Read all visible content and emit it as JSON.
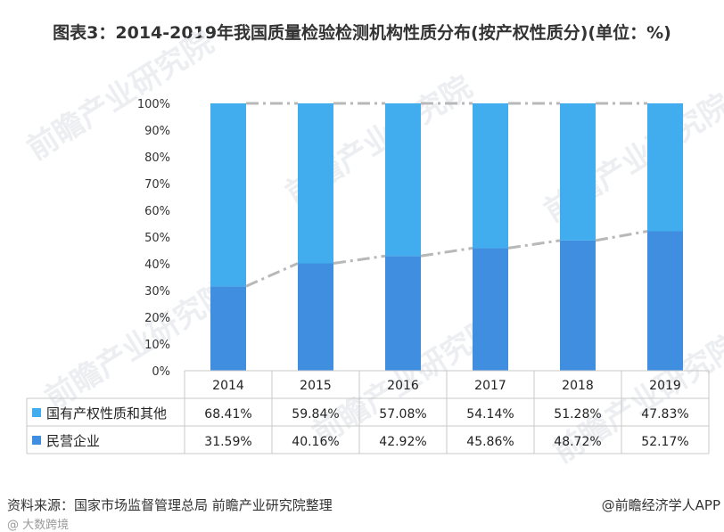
{
  "title": "图表3：2014-2019年我国质量检验检测机构性质分布(按产权性质分)(单位：%)",
  "source": "资料来源：国家市场监督管理总局 前瞻产业研究院整理",
  "credit": "@前瞻经济学人APP",
  "corner_mark": "@ 大数跨境",
  "watermark_text": "前瞻产业研究院",
  "colors": {
    "state": "#41adef",
    "private": "#3f8ee0",
    "trend": "#b8b8b8",
    "grid": "#c8c8c8"
  },
  "chart_data": {
    "type": "bar",
    "stacked": true,
    "categories": [
      "2014",
      "2015",
      "2016",
      "2017",
      "2018",
      "2019"
    ],
    "series": [
      {
        "name": "民营企业",
        "values": [
          31.59,
          40.16,
          42.92,
          45.86,
          48.72,
          52.17
        ],
        "labels": [
          "31.59%",
          "40.16%",
          "42.92%",
          "45.86%",
          "48.72%",
          "52.17%"
        ]
      },
      {
        "name": "国有产权性质和其他",
        "values": [
          68.41,
          59.84,
          57.08,
          54.14,
          51.28,
          47.83
        ],
        "labels": [
          "68.41%",
          "59.84%",
          "57.08%",
          "54.14%",
          "51.28%",
          "47.83%"
        ]
      }
    ],
    "yticks": [
      "0%",
      "10%",
      "20%",
      "30%",
      "40%",
      "50%",
      "60%",
      "70%",
      "80%",
      "90%",
      "100%"
    ],
    "ylim": [
      0,
      100
    ],
    "legend": "data-table"
  }
}
